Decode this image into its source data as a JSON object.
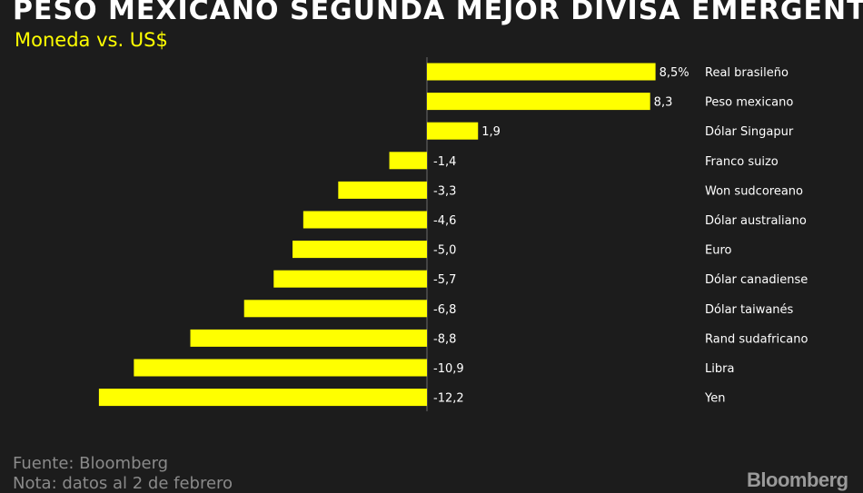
{
  "header": {
    "title": "PESO MEXICANO SEGUNDA MEJOR DIVISA EMERGENTE",
    "subtitle": "Moneda vs. US$"
  },
  "footer": {
    "source": "Fuente: Bloomberg",
    "note": "Nota: datos al 2 de febrero",
    "brand": "Bloomberg"
  },
  "colors": {
    "background": "#1c1c1c",
    "bar": "#ffff00",
    "text": "#ffffff",
    "muted": "#8a8a8a"
  },
  "chart_data": {
    "type": "bar",
    "orientation": "horizontal",
    "categories": [
      "Real brasileño",
      "Peso mexicano",
      "Dólar Singapur",
      "Franco suizo",
      "Won sudcoreano",
      "Dólar australiano",
      "Euro",
      "Dólar canadiense",
      "Dólar taiwanés",
      "Rand sudafricano",
      "Libra",
      "Yen"
    ],
    "values": [
      8.5,
      8.3,
      1.9,
      -1.4,
      -3.3,
      -4.6,
      -5.0,
      -5.7,
      -6.8,
      -8.8,
      -10.9,
      -12.2
    ],
    "value_labels": [
      "8,5%",
      "8,3",
      "1,9",
      "-1,4",
      "-3,3",
      "-4,6",
      "-5,0",
      "-5,7",
      "-6,8",
      "-8,8",
      "-10,9",
      "-12,2"
    ],
    "title": "PESO MEXICANO SEGUNDA MEJOR DIVISA EMERGENTE",
    "subtitle": "Moneda vs. US$",
    "xlabel": "",
    "ylabel": "",
    "grid": false,
    "legend": false
  }
}
